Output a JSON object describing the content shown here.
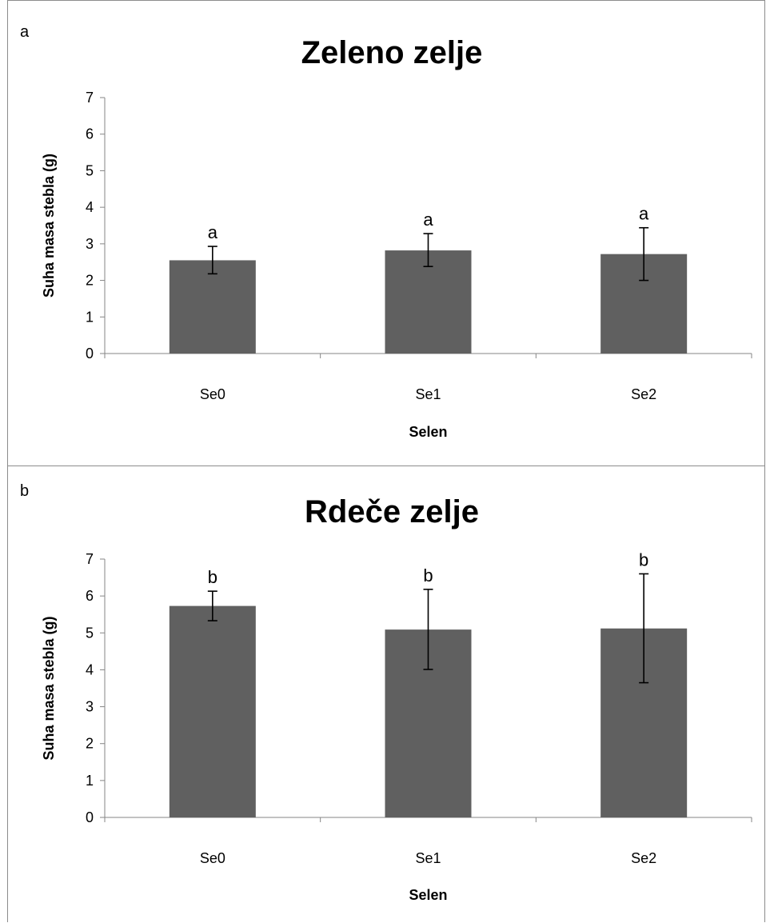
{
  "chart_data": [
    {
      "type": "bar",
      "panel_label": "a",
      "title": "Zeleno zelje",
      "xlabel": "Selen",
      "ylabel": "Suha masa stebla (g)",
      "ylim": [
        0,
        7
      ],
      "yticks": [
        0,
        1,
        2,
        3,
        4,
        5,
        6,
        7
      ],
      "categories": [
        "Se0",
        "Se1",
        "Se2"
      ],
      "values": [
        2.55,
        2.82,
        2.72
      ],
      "error_low": [
        2.18,
        2.38,
        2.0
      ],
      "error_high": [
        2.93,
        3.28,
        3.44
      ],
      "significance_labels": [
        "a",
        "a",
        "a"
      ],
      "bar_color": "#606060",
      "grid": false
    },
    {
      "type": "bar",
      "panel_label": "b",
      "title": "Rdeče zelje",
      "xlabel": "Selen",
      "ylabel": "Suha masa stebla (g)",
      "ylim": [
        0,
        7
      ],
      "yticks": [
        0,
        1,
        2,
        3,
        4,
        5,
        6,
        7
      ],
      "categories": [
        "Se0",
        "Se1",
        "Se2"
      ],
      "values": [
        5.73,
        5.09,
        5.12
      ],
      "error_low": [
        5.33,
        4.01,
        3.65
      ],
      "error_high": [
        6.13,
        6.18,
        6.6
      ],
      "significance_labels": [
        "b",
        "b",
        "b"
      ],
      "bar_color": "#606060",
      "grid": false
    }
  ]
}
